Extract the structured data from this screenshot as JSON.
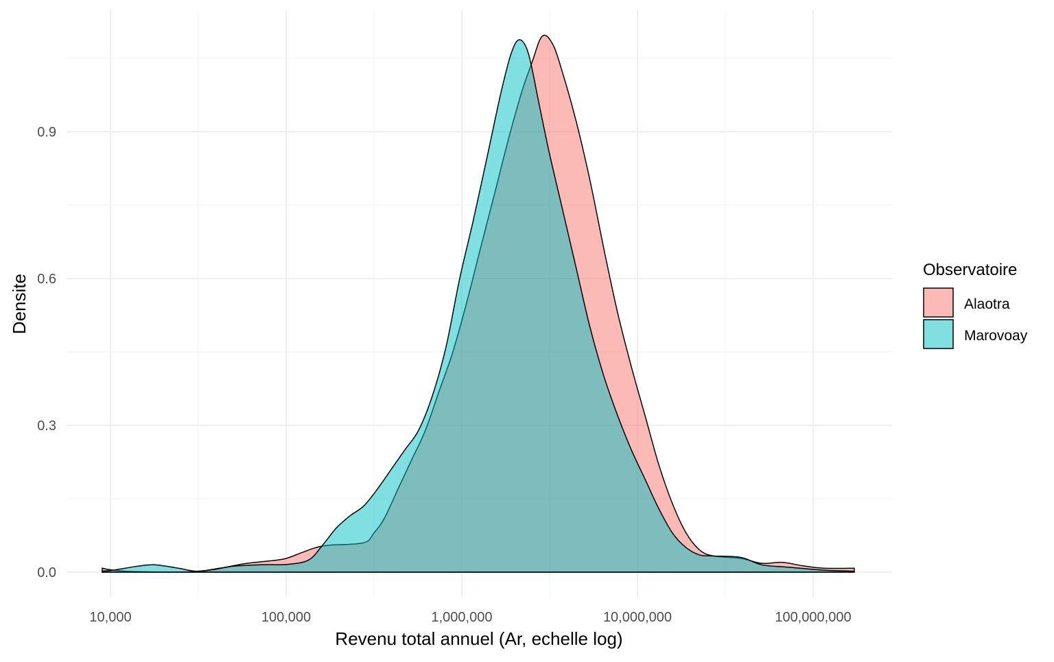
{
  "chart_data": {
    "type": "area",
    "subtype": "density",
    "title": "",
    "xlabel": "Revenu total annuel (Ar, echelle log)",
    "ylabel": "Densite",
    "xscale": "log10",
    "xlim_log10": [
      3.75,
      8.5
    ],
    "ylim": [
      -0.08,
      1.14
    ],
    "x_ticks": [
      {
        "log10": 4,
        "label": "10,000"
      },
      {
        "log10": 5,
        "label": "100,000"
      },
      {
        "log10": 6,
        "label": "1,000,000"
      },
      {
        "log10": 7,
        "label": "10,000,000"
      },
      {
        "log10": 8,
        "label": "100,000,000"
      }
    ],
    "y_ticks": [
      {
        "value": 0.0,
        "label": "0.0"
      },
      {
        "value": 0.3,
        "label": "0.3"
      },
      {
        "value": 0.6,
        "label": "0.6"
      },
      {
        "value": 0.9,
        "label": "0.9"
      }
    ],
    "grid": true,
    "legend": {
      "title": "Observatoire",
      "position": "right"
    },
    "series": [
      {
        "name": "Alaotra",
        "color": "#F8766D",
        "alpha": 0.5,
        "x_log10": [
          3.953,
          4.016,
          4.152,
          4.465,
          4.621,
          4.777,
          4.934,
          5.0,
          5.09,
          5.168,
          5.246,
          5.441,
          5.5,
          5.559,
          5.637,
          5.715,
          5.793,
          5.871,
          5.949,
          6.027,
          6.105,
          6.184,
          6.262,
          6.34,
          6.398,
          6.457,
          6.516,
          6.574,
          6.652,
          6.73,
          6.809,
          6.887,
          6.965,
          7.043,
          7.121,
          7.199,
          7.277,
          7.355,
          7.434,
          7.59,
          7.707,
          7.824,
          7.941,
          8.059,
          8.234
        ],
        "density": [
          0.008,
          0.004,
          0.001,
          0.001,
          0.008,
          0.018,
          0.024,
          0.028,
          0.04,
          0.05,
          0.055,
          0.06,
          0.08,
          0.11,
          0.17,
          0.23,
          0.29,
          0.37,
          0.45,
          0.55,
          0.66,
          0.77,
          0.88,
          0.98,
          1.04,
          1.095,
          1.08,
          1.02,
          0.92,
          0.8,
          0.66,
          0.53,
          0.42,
          0.32,
          0.22,
          0.14,
          0.08,
          0.045,
          0.033,
          0.028,
          0.018,
          0.02,
          0.013,
          0.008,
          0.008
        ]
      },
      {
        "name": "Marovoay",
        "color": "#00BFC4",
        "alpha": 0.5,
        "x_log10": [
          3.953,
          4.016,
          4.152,
          4.25,
          4.387,
          4.484,
          4.582,
          4.699,
          4.855,
          5.012,
          5.129,
          5.207,
          5.285,
          5.363,
          5.441,
          5.52,
          5.598,
          5.676,
          5.754,
          5.832,
          5.91,
          5.988,
          6.066,
          6.145,
          6.223,
          6.281,
          6.328,
          6.379,
          6.438,
          6.496,
          6.574,
          6.652,
          6.73,
          6.809,
          6.887,
          6.965,
          7.043,
          7.121,
          7.199,
          7.277,
          7.355,
          7.434,
          7.59,
          7.707,
          7.863,
          8.059,
          8.234
        ],
        "density": [
          0.002,
          0.004,
          0.012,
          0.015,
          0.008,
          0.002,
          0.005,
          0.012,
          0.015,
          0.016,
          0.025,
          0.055,
          0.09,
          0.115,
          0.135,
          0.17,
          0.21,
          0.25,
          0.29,
          0.36,
          0.46,
          0.6,
          0.72,
          0.85,
          0.98,
          1.06,
          1.088,
          1.06,
          0.96,
          0.86,
          0.74,
          0.62,
          0.5,
          0.4,
          0.32,
          0.25,
          0.19,
          0.13,
          0.08,
          0.05,
          0.035,
          0.033,
          0.03,
          0.015,
          0.01,
          0.004,
          0.002
        ]
      }
    ]
  }
}
